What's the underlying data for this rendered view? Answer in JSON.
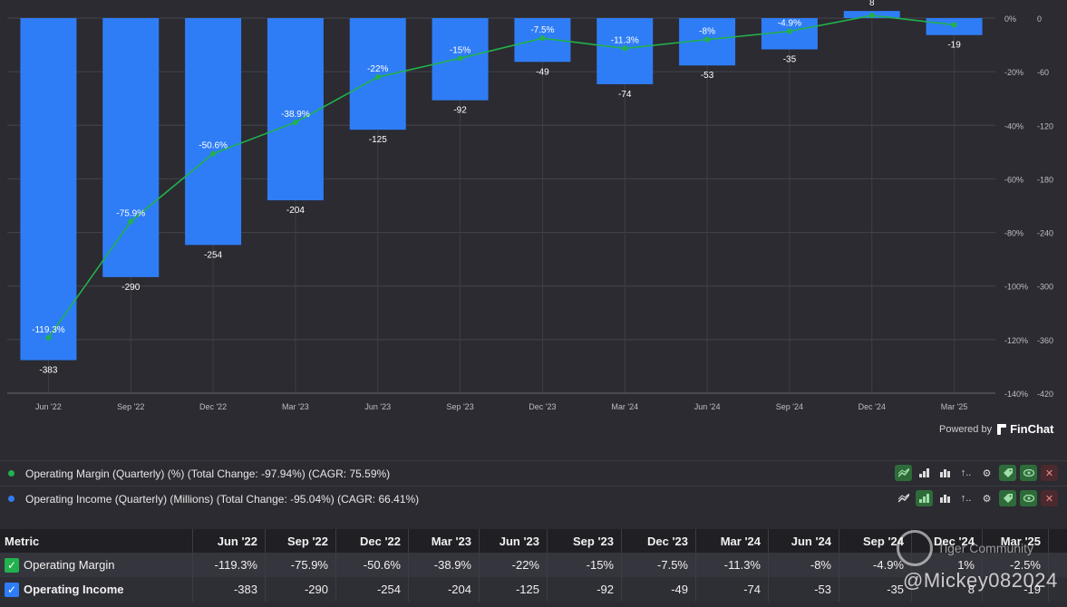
{
  "chart_data": {
    "type": "bar+line",
    "categories": [
      "Jun '22",
      "Sep '22",
      "Dec '22",
      "Mar '23",
      "Jun '23",
      "Sep '23",
      "Dec '23",
      "Mar '24",
      "Jun '24",
      "Sep '24",
      "Dec '24",
      "Mar '25"
    ],
    "series": [
      {
        "name": "Operating Income (Quarterly) (Millions)",
        "type": "bar",
        "axis": "right",
        "color": "#2f7df6",
        "values": [
          -383,
          -290,
          -254,
          -204,
          -125,
          -92,
          -49,
          -74,
          -53,
          -35,
          8,
          -19
        ],
        "labels": [
          "-383",
          "-290",
          "-254",
          "-204",
          "-125",
          "-92",
          "-49",
          "-74",
          "-53",
          "-35",
          "8",
          "-19"
        ]
      },
      {
        "name": "Operating Margin (Quarterly) (%)",
        "type": "line",
        "axis": "left",
        "color": "#22b14c",
        "values": [
          -119.3,
          -75.9,
          -50.6,
          -38.9,
          -22,
          -15,
          -7.5,
          -11.3,
          -8,
          -4.9,
          1,
          -2.5
        ],
        "labels": [
          "-119.3%",
          "-75.9%",
          "-50.6%",
          "-38.9%",
          "-22%",
          "-15%",
          "-7.5%",
          "-11.3%",
          "-8%",
          "-4.9%",
          "",
          ""
        ]
      }
    ],
    "x_tick_labels": [
      "Jun '22",
      "Sep '22",
      "Dec '22",
      "Mar '23",
      "Jun '23",
      "Sep '23",
      "Dec '23",
      "Mar '24",
      "Jun '24",
      "Sep '24",
      "Dec '24",
      "Mar '25"
    ],
    "y_left_ticks": [
      "0%",
      "-20%",
      "-40%",
      "-60%",
      "-80%",
      "-100%",
      "-120%",
      "-140%"
    ],
    "y_right_ticks": [
      "0",
      "-60",
      "-120",
      "-180",
      "-240",
      "-300",
      "-360",
      "-420"
    ],
    "ylim_right": [
      -420,
      0
    ],
    "ylim_left": [
      -140,
      0
    ],
    "grid": true
  },
  "powered_by": {
    "label": "Powered by",
    "brand": "FinChat"
  },
  "legend": [
    {
      "color": "#22b14c",
      "text": "Operating Margin (Quarterly) (%) (Total Change: -97.94%) (CAGR: 75.59%)",
      "active_tool": 0
    },
    {
      "color": "#2f7df6",
      "text": "Operating Income (Quarterly) (Millions) (Total Change: -95.04%) (CAGR: 66.41%)",
      "active_tool": 1
    }
  ],
  "table": {
    "header": [
      "Metric",
      "Jun '22",
      "Sep '22",
      "Dec '22",
      "Mar '23",
      "Jun '23",
      "Sep '23",
      "Dec '23",
      "Mar '24",
      "Jun '24",
      "Sep '24",
      "Dec '24",
      "Mar '25"
    ],
    "rows": [
      {
        "check_color": "#22b14c",
        "cells": [
          "Operating Margin",
          "-119.3%",
          "-75.9%",
          "-50.6%",
          "-38.9%",
          "-22%",
          "-15%",
          "-7.5%",
          "-11.3%",
          "-8%",
          "-4.9%",
          "1%",
          "-2.5%"
        ]
      },
      {
        "check_color": "#2f7df6",
        "cells": [
          "Operating Income",
          "-383",
          "-290",
          "-254",
          "-204",
          "-125",
          "-92",
          "-49",
          "-74",
          "-53",
          "-35",
          "8",
          "-19"
        ]
      }
    ]
  },
  "watermark": {
    "line1": "Tiger Community",
    "line2": "@Mickey082024"
  }
}
